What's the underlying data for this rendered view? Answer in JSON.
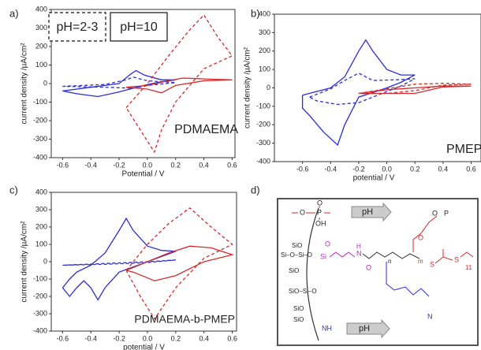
{
  "chart_data": [
    {
      "type": "line",
      "panel_label": "a)",
      "annotation": "PDMAEMA",
      "xlabel": "Potential / V",
      "ylabel": "current density /µA/cm²",
      "xlim": [
        -0.68,
        0.62
      ],
      "ylim": [
        -400,
        400
      ],
      "xticks": [
        -0.6,
        -0.4,
        -0.2,
        {
          "value": 0,
          "label": "0.0"
        },
        0.2,
        0.4,
        0.6
      ],
      "yticks": [
        -400,
        -300,
        -200,
        -100,
        0,
        100,
        200,
        300,
        400
      ],
      "legend_boxes": [
        {
          "label": "pH=2-3",
          "style": "dashed"
        },
        {
          "label": "pH=10",
          "style": "solid"
        }
      ],
      "series": [
        {
          "color": "#2b2bd9",
          "style": "solid",
          "x": [
            -0.6,
            -0.4,
            -0.2,
            -0.12,
            -0.08,
            -0.02,
            0.1,
            0.2,
            0.1,
            0,
            -0.1,
            -0.2,
            -0.35,
            -0.5,
            -0.6
          ],
          "values": [
            -40,
            -20,
            0,
            50,
            70,
            45,
            20,
            20,
            10,
            -5,
            -25,
            -45,
            -70,
            -55,
            -40
          ]
        },
        {
          "color": "#2b2bd9",
          "style": "dashed",
          "x": [
            -0.6,
            -0.3,
            -0.15,
            -0.1,
            0,
            0.2,
            0,
            -0.1,
            -0.3,
            -0.6
          ],
          "values": [
            -15,
            -5,
            20,
            35,
            15,
            5,
            -10,
            -25,
            -20,
            -15
          ]
        },
        {
          "color": "#d42a2a",
          "style": "solid",
          "x": [
            -0.15,
            0,
            0.15,
            0.25,
            0.4,
            0.6,
            0.4,
            0.2,
            0.1,
            0,
            -0.15
          ],
          "values": [
            -20,
            -10,
            15,
            30,
            25,
            20,
            15,
            -10,
            -50,
            -30,
            -20
          ]
        },
        {
          "color": "#d42a2a",
          "style": "dashed",
          "x": [
            -0.15,
            0,
            0.15,
            0.3,
            0.4,
            0.5,
            0.6,
            0.4,
            0.2,
            0.1,
            0.05,
            -0.05,
            -0.15
          ],
          "values": [
            -130,
            0,
            150,
            290,
            370,
            250,
            150,
            80,
            -100,
            -250,
            -370,
            -250,
            -130
          ]
        }
      ]
    },
    {
      "type": "line",
      "panel_label": "b)",
      "annotation": "PMEP",
      "xlabel": "potential / V",
      "ylabel": "current density /µA/cm²",
      "xlim": [
        -0.8,
        0.67
      ],
      "ylim": [
        -400,
        400
      ],
      "xticks": [
        -0.6,
        -0.4,
        -0.2,
        {
          "value": 0,
          "label": "0.0"
        },
        0.2,
        0.4,
        0.6
      ],
      "yticks": [
        -400,
        -300,
        -200,
        -100,
        0,
        100,
        200,
        300,
        400
      ],
      "series": [
        {
          "color": "#2b2bd9",
          "style": "solid",
          "x": [
            -0.6,
            -0.4,
            -0.3,
            -0.2,
            -0.15,
            -0.1,
            0,
            0.1,
            0.2,
            0.1,
            0,
            -0.2,
            -0.3,
            -0.35,
            -0.45,
            -0.55,
            -0.6,
            -0.6
          ],
          "values": [
            -40,
            0,
            60,
            200,
            260,
            200,
            100,
            70,
            70,
            30,
            0,
            -50,
            -200,
            -310,
            -240,
            -150,
            -110,
            -40
          ]
        },
        {
          "color": "#2b2bd9",
          "style": "dashed",
          "x": [
            -0.55,
            -0.4,
            -0.3,
            -0.2,
            -0.1,
            0.1,
            0.2,
            0.1,
            -0.2,
            -0.35,
            -0.5,
            -0.55
          ],
          "values": [
            -50,
            -5,
            40,
            80,
            40,
            45,
            50,
            10,
            -80,
            -90,
            -70,
            -50
          ]
        },
        {
          "color": "#d42a2a",
          "style": "solid",
          "x": [
            -0.2,
            0,
            0.2,
            0.4,
            0.6,
            0.4,
            0.2,
            0,
            -0.2
          ],
          "values": [
            -30,
            -10,
            0,
            10,
            10,
            5,
            -30,
            -30,
            -30
          ]
        },
        {
          "color": "#d42a2a",
          "style": "dashed",
          "x": [
            -0.2,
            0,
            0.2,
            0.4,
            0.6,
            0.4,
            0.2,
            0,
            -0.2
          ],
          "values": [
            -30,
            -5,
            20,
            25,
            20,
            15,
            -15,
            -30,
            -30
          ]
        }
      ]
    },
    {
      "type": "line",
      "panel_label": "c)",
      "annotation": "PDMAEMA-b-PMEP",
      "xlabel": "potential / V",
      "ylabel": "current density /µA/cm²",
      "xlim": [
        -0.68,
        0.63
      ],
      "ylim": [
        -400,
        400
      ],
      "xticks": [
        -0.6,
        -0.4,
        -0.2,
        {
          "value": 0,
          "label": "0.0"
        },
        0.2,
        0.4,
        0.6
      ],
      "yticks": [
        -400,
        -300,
        -200,
        -100,
        0,
        100,
        200,
        300,
        400
      ],
      "series": [
        {
          "color": "#2b2bd9",
          "style": "solid",
          "x": [
            -0.6,
            -0.55,
            -0.5,
            -0.4,
            -0.3,
            -0.2,
            -0.15,
            -0.1,
            0,
            0.1,
            0.2,
            0.1,
            0,
            -0.2,
            -0.3,
            -0.35,
            -0.4,
            -0.45,
            -0.5,
            -0.55,
            -0.6
          ],
          "values": [
            -150,
            -100,
            -60,
            -20,
            50,
            180,
            250,
            180,
            90,
            65,
            60,
            30,
            0,
            -60,
            -150,
            -220,
            -150,
            -110,
            -150,
            -200,
            -150
          ]
        },
        {
          "color": "#2b2bd9",
          "style": "dashed",
          "x": [
            -0.6,
            -0.3,
            0,
            0.2,
            0,
            -0.3,
            -0.6
          ],
          "values": [
            -20,
            -10,
            0,
            10,
            -5,
            -15,
            -20
          ]
        },
        {
          "color": "#d42a2a",
          "style": "solid",
          "x": [
            -0.15,
            0,
            0.15,
            0.3,
            0.45,
            0.6,
            0.4,
            0.2,
            0.05,
            -0.1,
            -0.15
          ],
          "values": [
            -50,
            0,
            50,
            90,
            80,
            40,
            0,
            -80,
            -110,
            -60,
            -50
          ]
        },
        {
          "color": "#d42a2a",
          "style": "dashed",
          "x": [
            -0.15,
            0,
            0.15,
            0.3,
            0.45,
            0.6,
            0.4,
            0.2,
            0.05,
            -0.05,
            -0.15
          ],
          "values": [
            -50,
            100,
            220,
            310,
            200,
            100,
            20,
            -150,
            -330,
            -200,
            -50
          ]
        }
      ]
    }
  ],
  "diagram": {
    "panel_label": "d)",
    "texts": [
      "pH",
      "pH",
      "O",
      "P",
      "OH",
      "O",
      "P",
      "O",
      "SiO",
      "Si–O–Si–O",
      "SiO",
      "SiO–Si–O",
      "SiO",
      "SiO",
      "Si",
      "O",
      "N",
      "H",
      "O",
      "O",
      "n",
      "m",
      "S",
      "S",
      "11",
      "NH",
      "N"
    ]
  }
}
